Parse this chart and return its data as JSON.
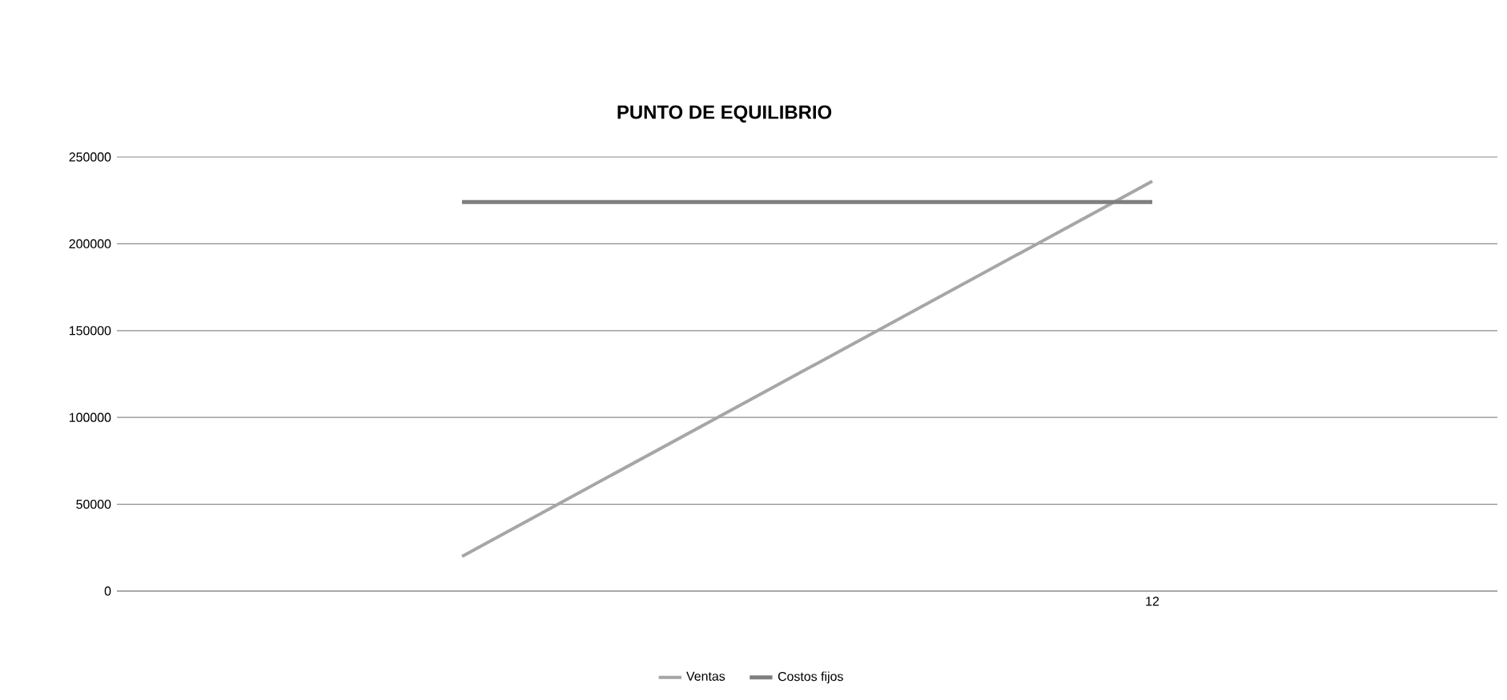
{
  "chart_data": {
    "type": "line",
    "title": "PUNTO DE EQUILIBRIO",
    "categories": [
      null,
      "12"
    ],
    "series": [
      {
        "name": "Ventas",
        "color": "#a6a6a6",
        "values": [
          20000,
          236000
        ]
      },
      {
        "name": "Costos fijos",
        "color": "#7f7f7f",
        "values": [
          224000,
          224000
        ]
      }
    ],
    "ylim": [
      0,
      250000
    ],
    "yticks": [
      0,
      50000,
      100000,
      150000,
      200000,
      250000
    ],
    "grid": "y",
    "legend": "bottom",
    "marker": "none",
    "line_style": "solid"
  }
}
